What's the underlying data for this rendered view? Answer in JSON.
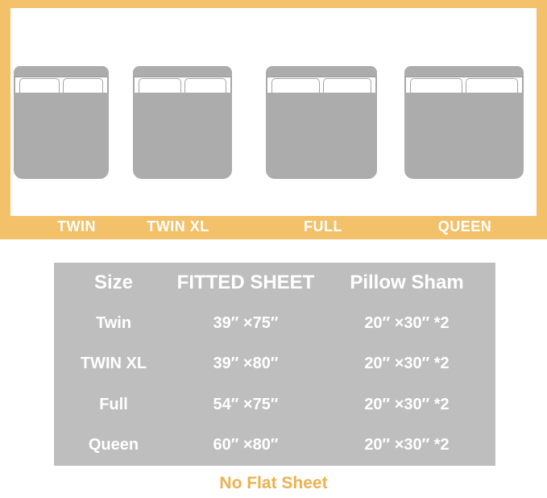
{
  "size_guide": {
    "beds": [
      {
        "label": "TWIN"
      },
      {
        "label": "TWIN XL"
      },
      {
        "label": "FULL"
      },
      {
        "label": "QUEEN"
      }
    ]
  },
  "table": {
    "headers": [
      "Size",
      "FITTED SHEET",
      "Pillow Sham"
    ],
    "rows": [
      [
        "Twin",
        "39″ ×75″",
        "20″ ×30″ *2"
      ],
      [
        "TWIN XL",
        "39″ ×80″",
        "20″ ×30″ *2"
      ],
      [
        "Full",
        "54″ ×75″",
        "20″ ×30″ *2"
      ],
      [
        "Queen",
        "60″ ×80″",
        "20″ ×30″ *2"
      ]
    ]
  },
  "footnote": "No Flat Sheet",
  "colors": {
    "accent_amber": "#F2C169",
    "footnote_amber": "#EDB14F",
    "table_gray": "#BEBEBE",
    "bed_gray": "#ACACAC",
    "text_white": "#FFFFFF"
  }
}
